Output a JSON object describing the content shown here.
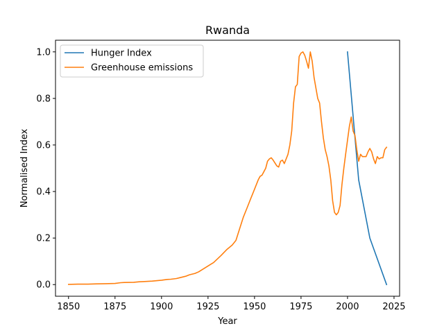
{
  "chart_data": {
    "type": "line",
    "title": "Rwanda",
    "xlabel": "Year",
    "ylabel": "Normalised Index",
    "xlim": [
      1843,
      2028
    ],
    "ylim": [
      -0.05,
      1.05
    ],
    "xticks": [
      1850,
      1875,
      1900,
      1925,
      1950,
      1975,
      2000,
      2025
    ],
    "yticks": [
      0.0,
      0.2,
      0.4,
      0.6,
      0.8,
      1.0
    ],
    "xtick_labels": [
      "1850",
      "1875",
      "1900",
      "1925",
      "1950",
      "1975",
      "2000",
      "2025"
    ],
    "ytick_labels": [
      "0.0",
      "0.2",
      "0.4",
      "0.6",
      "0.8",
      "1.0"
    ],
    "grid": false,
    "legend_position": "top-left",
    "series": [
      {
        "name": "Hunger Index",
        "color": "#1f77b4",
        "x": [
          2000,
          2006,
          2012,
          2021
        ],
        "y": [
          1.0,
          0.45,
          0.2,
          0.0
        ]
      },
      {
        "name": "Greenhouse emissions",
        "color": "#ff7f0e",
        "x": [
          1850,
          1855,
          1860,
          1865,
          1870,
          1875,
          1878,
          1880,
          1885,
          1888,
          1890,
          1895,
          1900,
          1903,
          1905,
          1908,
          1910,
          1913,
          1915,
          1918,
          1920,
          1922,
          1925,
          1928,
          1930,
          1932,
          1935,
          1938,
          1940,
          1942,
          1944,
          1946,
          1948,
          1949,
          1950,
          1952,
          1953,
          1954,
          1956,
          1957,
          1958,
          1959,
          1960,
          1962,
          1963,
          1964,
          1965,
          1966,
          1968,
          1969,
          1970,
          1971,
          1972,
          1973,
          1974,
          1975,
          1976,
          1977,
          1978,
          1979,
          1980,
          1981,
          1982,
          1984,
          1985,
          1986,
          1987,
          1988,
          1989,
          1990,
          1991,
          1992,
          1993,
          1994,
          1995,
          1996,
          1997,
          1998,
          1999,
          2000,
          2001,
          2002,
          2003,
          2004,
          2005,
          2006,
          2007,
          2008,
          2009,
          2010,
          2011,
          2012,
          2013,
          2014,
          2015,
          2016,
          2017,
          2018,
          2019,
          2020,
          2021
        ],
        "y": [
          0.001,
          0.002,
          0.002,
          0.003,
          0.004,
          0.005,
          0.008,
          0.009,
          0.01,
          0.012,
          0.013,
          0.015,
          0.019,
          0.022,
          0.023,
          0.026,
          0.03,
          0.036,
          0.042,
          0.048,
          0.055,
          0.065,
          0.08,
          0.095,
          0.11,
          0.125,
          0.15,
          0.17,
          0.19,
          0.24,
          0.29,
          0.33,
          0.37,
          0.39,
          0.41,
          0.45,
          0.465,
          0.47,
          0.5,
          0.53,
          0.54,
          0.545,
          0.535,
          0.51,
          0.505,
          0.53,
          0.535,
          0.52,
          0.56,
          0.6,
          0.66,
          0.78,
          0.85,
          0.86,
          0.98,
          0.995,
          1.0,
          0.985,
          0.96,
          0.93,
          1.0,
          0.96,
          0.89,
          0.8,
          0.78,
          0.7,
          0.63,
          0.58,
          0.55,
          0.51,
          0.45,
          0.36,
          0.31,
          0.3,
          0.31,
          0.34,
          0.43,
          0.5,
          0.56,
          0.62,
          0.68,
          0.72,
          0.66,
          0.64,
          0.58,
          0.53,
          0.56,
          0.55,
          0.55,
          0.55,
          0.57,
          0.585,
          0.57,
          0.54,
          0.52,
          0.55,
          0.54,
          0.545,
          0.545,
          0.58,
          0.59
        ]
      }
    ]
  }
}
